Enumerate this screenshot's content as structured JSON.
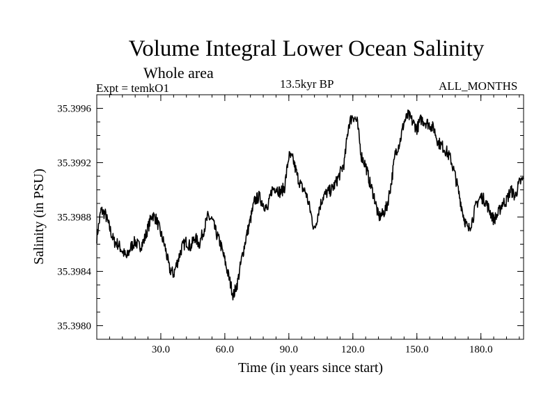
{
  "header": {
    "title": "Volume Integral Lower Ocean Salinity",
    "subtitle": "Whole area",
    "experiment": "Expt = temkO1",
    "period": "13.5kyr BP",
    "months": "ALL_MONTHS"
  },
  "chart_data": {
    "type": "line",
    "title": "Volume Integral Lower Ocean Salinity",
    "subtitle": "Whole area",
    "xlabel": "Time (in years since start)",
    "ylabel": "Salinity (in PSU)",
    "xlim": [
      0,
      200
    ],
    "ylim": [
      35.3979,
      35.3997
    ],
    "xticks": [
      30,
      60,
      90,
      120,
      150,
      180
    ],
    "xtick_labels": [
      "30.0",
      "60.0",
      "90.0",
      "120.0",
      "150.0",
      "180.0"
    ],
    "yticks": [
      35.398,
      35.3984,
      35.3988,
      35.3992,
      35.3996
    ],
    "ytick_labels": [
      "35.3980",
      "35.3984",
      "35.3988",
      "35.3992",
      "35.3996"
    ],
    "grid": false,
    "series": [
      {
        "name": "salinity",
        "x": [
          0,
          2,
          4,
          6,
          8,
          10,
          12,
          14,
          16,
          18,
          20,
          22,
          24,
          26,
          28,
          30,
          32,
          34,
          36,
          38,
          40,
          42,
          44,
          46,
          48,
          50,
          52,
          54,
          56,
          58,
          60,
          62,
          64,
          66,
          68,
          70,
          72,
          74,
          76,
          78,
          80,
          82,
          84,
          86,
          88,
          90,
          92,
          94,
          96,
          98,
          100,
          102,
          104,
          106,
          108,
          110,
          112,
          114,
          116,
          118,
          120,
          122,
          124,
          126,
          128,
          130,
          132,
          134,
          136,
          138,
          140,
          142,
          144,
          146,
          148,
          150,
          152,
          154,
          156,
          158,
          160,
          162,
          164,
          166,
          168,
          170,
          172,
          174,
          176,
          178,
          180,
          182,
          184,
          186,
          188,
          190,
          192,
          194,
          196,
          198,
          200
        ],
        "values": [
          35.39865,
          35.39885,
          35.39882,
          35.39872,
          35.39862,
          35.3986,
          35.39855,
          35.3985,
          35.39858,
          35.39862,
          35.39858,
          35.39862,
          35.39872,
          35.39882,
          35.39878,
          35.39868,
          35.39858,
          35.39842,
          35.39838,
          35.39848,
          35.39858,
          35.39862,
          35.39858,
          35.39865,
          35.3986,
          35.3987,
          35.3988,
          35.39878,
          35.39868,
          35.3986,
          35.39848,
          35.39835,
          35.39822,
          35.39832,
          35.3985,
          35.39865,
          35.39878,
          35.39892,
          35.39895,
          35.3989,
          35.39885,
          35.399,
          35.39902,
          35.39898,
          35.39902,
          35.39925,
          35.39922,
          35.3991,
          35.39902,
          35.39898,
          35.39885,
          35.3987,
          35.39885,
          35.39895,
          35.39898,
          35.399,
          35.39905,
          35.39912,
          35.3992,
          35.39948,
          35.39955,
          35.3995,
          35.39925,
          35.39918,
          35.39905,
          35.39895,
          35.3988,
          35.39882,
          35.39888,
          35.39905,
          35.39928,
          35.39935,
          35.3995,
          35.39955,
          35.3995,
          35.39945,
          35.39952,
          35.3995,
          35.39948,
          35.39945,
          35.39935,
          35.39932,
          35.39928,
          35.39922,
          35.3991,
          35.39895,
          35.3988,
          35.3987,
          35.39878,
          35.3989,
          35.39895,
          35.39892,
          35.39885,
          35.39878,
          35.39882,
          35.3989,
          35.39892,
          35.399,
          35.39895,
          35.39905,
          35.39908
        ]
      }
    ]
  }
}
